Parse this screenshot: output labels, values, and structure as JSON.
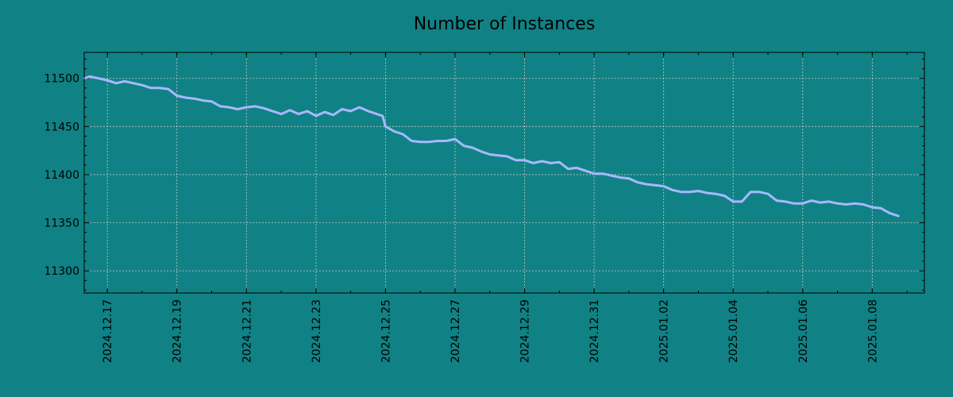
{
  "colors": {
    "background": "#108285",
    "line": "#A8B8FF",
    "text": "#000000",
    "grid": "#C8C8C8"
  },
  "chart_data": {
    "type": "line",
    "title": "Number of Instances",
    "xlabel": "",
    "ylabel": "",
    "grid": true,
    "x_tick_labels": [
      "2024.12.17",
      "2024.12.19",
      "2024.12.21",
      "2024.12.23",
      "2024.12.25",
      "2024.12.27",
      "2024.12.29",
      "2024.12.31",
      "2025.01.02",
      "2025.01.04",
      "2025.01.06",
      "2025.01.08"
    ],
    "x_range": [
      "2024.12.16 08:00",
      "2025.01.09 12:00"
    ],
    "y_ticks": [
      11300,
      11350,
      11400,
      11450,
      11500
    ],
    "ylim": [
      11277,
      11527
    ],
    "series": [
      {
        "points": [
          [
            "2024.12.16 08:00",
            11500
          ],
          [
            "2024.12.16 12:00",
            11502
          ],
          [
            "2024.12.16 18:00",
            11500
          ],
          [
            "2024.12.17 00:00",
            11498
          ],
          [
            "2024.12.17 06:00",
            11495
          ],
          [
            "2024.12.17 12:00",
            11497
          ],
          [
            "2024.12.17 18:00",
            11495
          ],
          [
            "2024.12.18 00:00",
            11493
          ],
          [
            "2024.12.18 06:00",
            11490
          ],
          [
            "2024.12.18 12:00",
            11490
          ],
          [
            "2024.12.18 18:00",
            11489
          ],
          [
            "2024.12.19 00:00",
            11482
          ],
          [
            "2024.12.19 06:00",
            11480
          ],
          [
            "2024.12.19 12:00",
            11479
          ],
          [
            "2024.12.19 18:00",
            11477
          ],
          [
            "2024.12.20 00:00",
            11476
          ],
          [
            "2024.12.20 06:00",
            11471
          ],
          [
            "2024.12.20 12:00",
            11470
          ],
          [
            "2024.12.20 18:00",
            11468
          ],
          [
            "2024.12.21 00:00",
            11470
          ],
          [
            "2024.12.21 06:00",
            11471
          ],
          [
            "2024.12.21 12:00",
            11469
          ],
          [
            "2024.12.21 18:00",
            11466
          ],
          [
            "2024.12.22 00:00",
            11463
          ],
          [
            "2024.12.22 06:00",
            11467
          ],
          [
            "2024.12.22 12:00",
            11463
          ],
          [
            "2024.12.22 18:00",
            11466
          ],
          [
            "2024.12.23 00:00",
            11461
          ],
          [
            "2024.12.23 06:00",
            11465
          ],
          [
            "2024.12.23 12:00",
            11462
          ],
          [
            "2024.12.23 18:00",
            11468
          ],
          [
            "2024.12.24 00:00",
            11466
          ],
          [
            "2024.12.24 06:00",
            11470
          ],
          [
            "2024.12.24 12:00",
            11466
          ],
          [
            "2024.12.24 18:00",
            11463
          ],
          [
            "2024.12.24 22:00",
            11461
          ],
          [
            "2024.12.25 00:00",
            11450
          ],
          [
            "2024.12.25 06:00",
            11445
          ],
          [
            "2024.12.25 12:00",
            11442
          ],
          [
            "2024.12.25 18:00",
            11435
          ],
          [
            "2024.12.26 00:00",
            11434
          ],
          [
            "2024.12.26 06:00",
            11434
          ],
          [
            "2024.12.26 12:00",
            11435
          ],
          [
            "2024.12.26 18:00",
            11435
          ],
          [
            "2024.12.27 00:00",
            11437
          ],
          [
            "2024.12.27 06:00",
            11430
          ],
          [
            "2024.12.27 12:00",
            11428
          ],
          [
            "2024.12.27 18:00",
            11424
          ],
          [
            "2024.12.28 00:00",
            11421
          ],
          [
            "2024.12.28 06:00",
            11420
          ],
          [
            "2024.12.28 12:00",
            11419
          ],
          [
            "2024.12.28 18:00",
            11415
          ],
          [
            "2024.12.29 00:00",
            11415
          ],
          [
            "2024.12.29 06:00",
            11412
          ],
          [
            "2024.12.29 12:00",
            11414
          ],
          [
            "2024.12.29 18:00",
            11412
          ],
          [
            "2024.12.30 00:00",
            11413
          ],
          [
            "2024.12.30 06:00",
            11406
          ],
          [
            "2024.12.30 12:00",
            11407
          ],
          [
            "2024.12.30 18:00",
            11404
          ],
          [
            "2024.12.31 00:00",
            11401
          ],
          [
            "2024.12.31 06:00",
            11401
          ],
          [
            "2024.12.31 12:00",
            11399
          ],
          [
            "2024.12.31 18:00",
            11397
          ],
          [
            "2025.01.01 00:00",
            11396
          ],
          [
            "2025.01.01 06:00",
            11392
          ],
          [
            "2025.01.01 12:00",
            11390
          ],
          [
            "2025.01.01 18:00",
            11389
          ],
          [
            "2025.01.02 00:00",
            11388
          ],
          [
            "2025.01.02 06:00",
            11384
          ],
          [
            "2025.01.02 12:00",
            11382
          ],
          [
            "2025.01.02 18:00",
            11382
          ],
          [
            "2025.01.03 00:00",
            11383
          ],
          [
            "2025.01.03 06:00",
            11381
          ],
          [
            "2025.01.03 12:00",
            11380
          ],
          [
            "2025.01.03 18:00",
            11378
          ],
          [
            "2025.01.04 00:00",
            11372
          ],
          [
            "2025.01.04 06:00",
            11372
          ],
          [
            "2025.01.04 12:00",
            11382
          ],
          [
            "2025.01.04 18:00",
            11382
          ],
          [
            "2025.01.05 00:00",
            11380
          ],
          [
            "2025.01.05 06:00",
            11373
          ],
          [
            "2025.01.05 12:00",
            11372
          ],
          [
            "2025.01.05 18:00",
            11370
          ],
          [
            "2025.01.06 00:00",
            11370
          ],
          [
            "2025.01.06 06:00",
            11373
          ],
          [
            "2025.01.06 12:00",
            11371
          ],
          [
            "2025.01.06 18:00",
            11372
          ],
          [
            "2025.01.07 00:00",
            11370
          ],
          [
            "2025.01.07 06:00",
            11369
          ],
          [
            "2025.01.07 12:00",
            11370
          ],
          [
            "2025.01.07 18:00",
            11369
          ],
          [
            "2025.01.08 00:00",
            11366
          ],
          [
            "2025.01.08 06:00",
            11365
          ],
          [
            "2025.01.08 12:00",
            11360
          ],
          [
            "2025.01.08 18:00",
            11357
          ]
        ]
      }
    ]
  }
}
